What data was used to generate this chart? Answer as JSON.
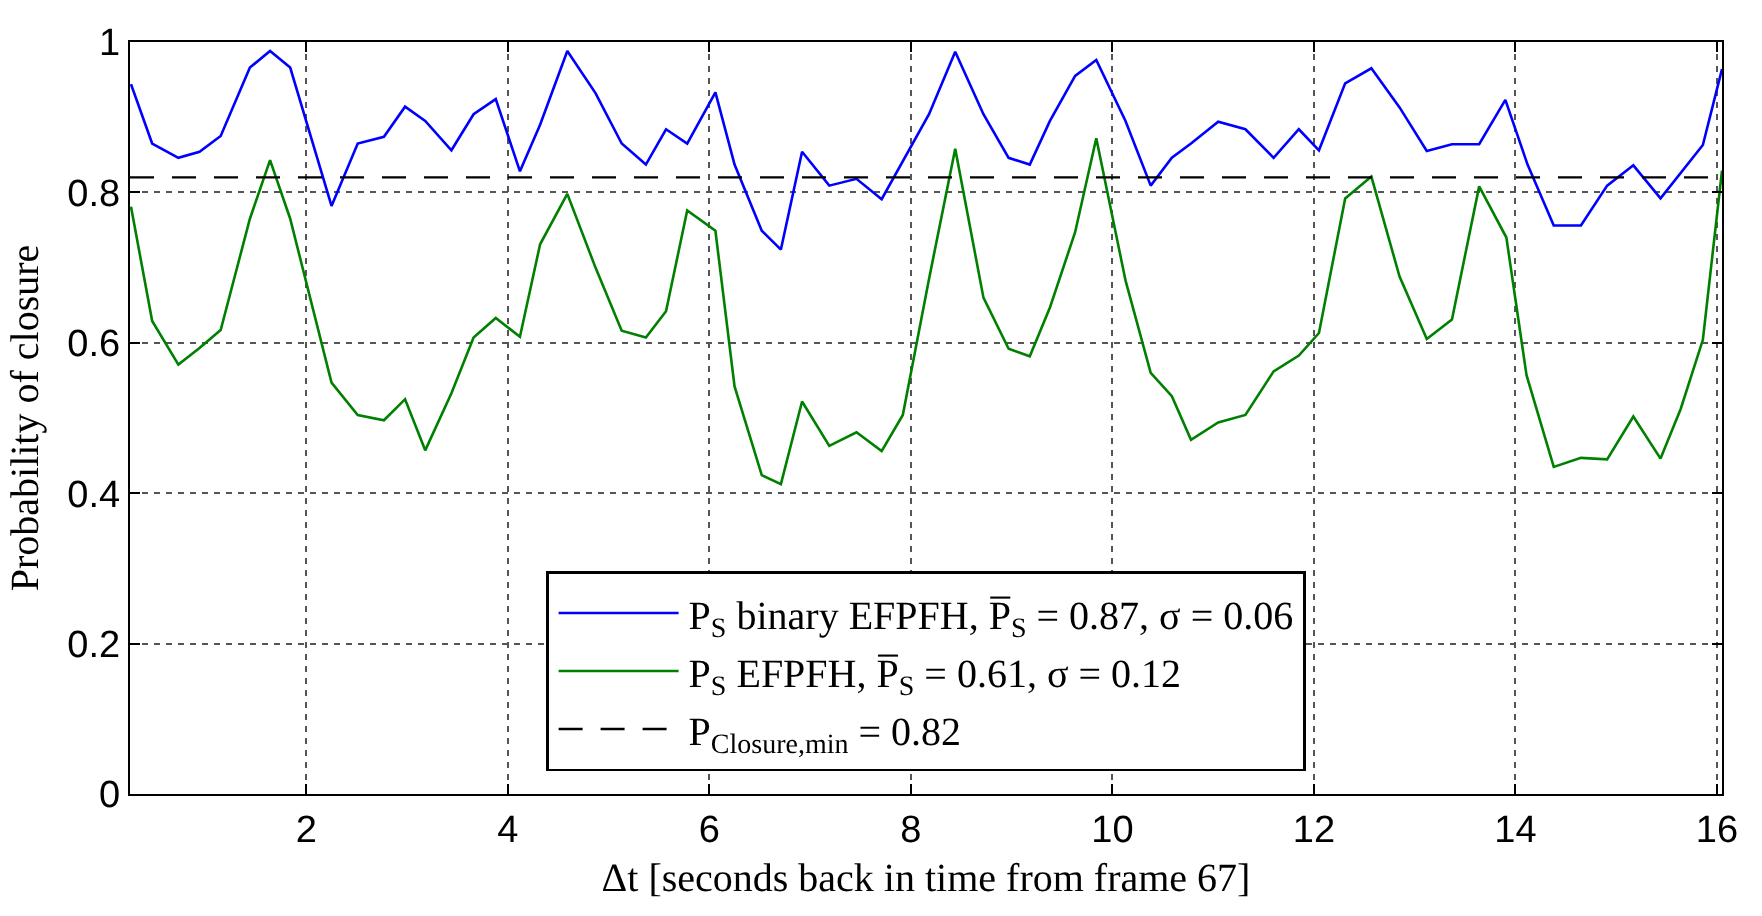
{
  "chart_data": {
    "type": "line",
    "xlabel": "Δt [seconds back in time from frame 67]",
    "ylabel": "Probability of closure",
    "xlim": [
      0.25,
      16.05
    ],
    "xticks": [
      2,
      4,
      6,
      8,
      10,
      12,
      14,
      16
    ],
    "ylim": [
      0,
      1
    ],
    "yticks": [
      0,
      0.2,
      0.4,
      0.6,
      0.8,
      1
    ],
    "grid": true,
    "legend": "bottom",
    "line_style": "solid",
    "marker": "none",
    "series": [
      {
        "name": "P$_{S}$ binary EFPFH, P̅$_{S}$ = 0.87, σ = 0.06",
        "color": "#0000ff",
        "x": [
          0.26,
          0.47,
          0.73,
          0.94,
          1.15,
          1.44,
          1.64,
          1.84,
          2.25,
          2.51,
          2.77,
          2.98,
          3.18,
          3.44,
          3.66,
          3.88,
          4.12,
          4.32,
          4.59,
          4.87,
          5.13,
          5.37,
          5.57,
          5.78,
          6.06,
          6.25,
          6.52,
          6.71,
          6.92,
          7.19,
          7.46,
          7.71,
          8.18,
          8.44,
          8.72,
          8.97,
          9.18,
          9.38,
          9.63,
          9.84,
          10.13,
          10.38,
          10.59,
          10.78,
          11.05,
          11.32,
          11.6,
          11.85,
          12.05,
          12.31,
          12.57,
          12.85,
          13.12,
          13.37,
          13.64,
          13.9,
          14.12,
          14.38,
          14.65,
          14.91,
          15.17,
          15.44,
          15.86,
          16.05
        ],
        "values": [
          0.944,
          0.865,
          0.846,
          0.854,
          0.875,
          0.966,
          0.988,
          0.966,
          0.782,
          0.865,
          0.874,
          0.914,
          0.895,
          0.856,
          0.904,
          0.924,
          0.828,
          0.89,
          0.988,
          0.932,
          0.865,
          0.837,
          0.884,
          0.865,
          0.933,
          0.837,
          0.749,
          0.724,
          0.854,
          0.809,
          0.818,
          0.791,
          0.904,
          0.987,
          0.904,
          0.846,
          0.837,
          0.895,
          0.955,
          0.976,
          0.895,
          0.809,
          0.846,
          0.865,
          0.894,
          0.884,
          0.846,
          0.884,
          0.856,
          0.945,
          0.965,
          0.913,
          0.855,
          0.864,
          0.864,
          0.923,
          0.837,
          0.756,
          0.756,
          0.809,
          0.836,
          0.792,
          0.863,
          0.964
        ]
      },
      {
        "name": "P$_{S}$ EFPFH, P̅$_{S}$ = 0.61, σ = 0.12",
        "color": "#008000",
        "x": [
          0.26,
          0.47,
          0.73,
          0.94,
          1.15,
          1.44,
          1.64,
          1.84,
          2.25,
          2.51,
          2.77,
          2.98,
          3.18,
          3.44,
          3.66,
          3.88,
          4.12,
          4.32,
          4.59,
          4.87,
          5.13,
          5.37,
          5.57,
          5.78,
          6.06,
          6.25,
          6.52,
          6.71,
          6.92,
          7.19,
          7.46,
          7.71,
          7.92,
          8.18,
          8.44,
          8.72,
          8.97,
          9.18,
          9.38,
          9.63,
          9.84,
          10.13,
          10.38,
          10.59,
          10.78,
          11.05,
          11.32,
          11.6,
          11.85,
          12.05,
          12.31,
          12.57,
          12.85,
          13.12,
          13.37,
          13.64,
          13.91,
          14.11,
          14.38,
          14.65,
          14.91,
          15.17,
          15.44,
          15.64,
          15.86,
          16.05
        ],
        "values": [
          0.781,
          0.629,
          0.571,
          0.593,
          0.617,
          0.765,
          0.843,
          0.765,
          0.547,
          0.504,
          0.497,
          0.525,
          0.457,
          0.533,
          0.607,
          0.633,
          0.608,
          0.731,
          0.798,
          0.7,
          0.616,
          0.607,
          0.642,
          0.776,
          0.749,
          0.542,
          0.424,
          0.412,
          0.522,
          0.463,
          0.481,
          0.456,
          0.504,
          0.685,
          0.858,
          0.66,
          0.592,
          0.582,
          0.647,
          0.747,
          0.872,
          0.683,
          0.56,
          0.529,
          0.471,
          0.494,
          0.504,
          0.562,
          0.583,
          0.613,
          0.792,
          0.821,
          0.688,
          0.605,
          0.631,
          0.808,
          0.74,
          0.557,
          0.435,
          0.447,
          0.445,
          0.502,
          0.446,
          0.512,
          0.604,
          0.829
        ]
      }
    ],
    "ref_lines": [
      {
        "axis": "y",
        "value": 0.82,
        "label": "P$_{Closure,min}$ = 0.82",
        "color": "#000000",
        "line_style": "dashed"
      }
    ]
  }
}
